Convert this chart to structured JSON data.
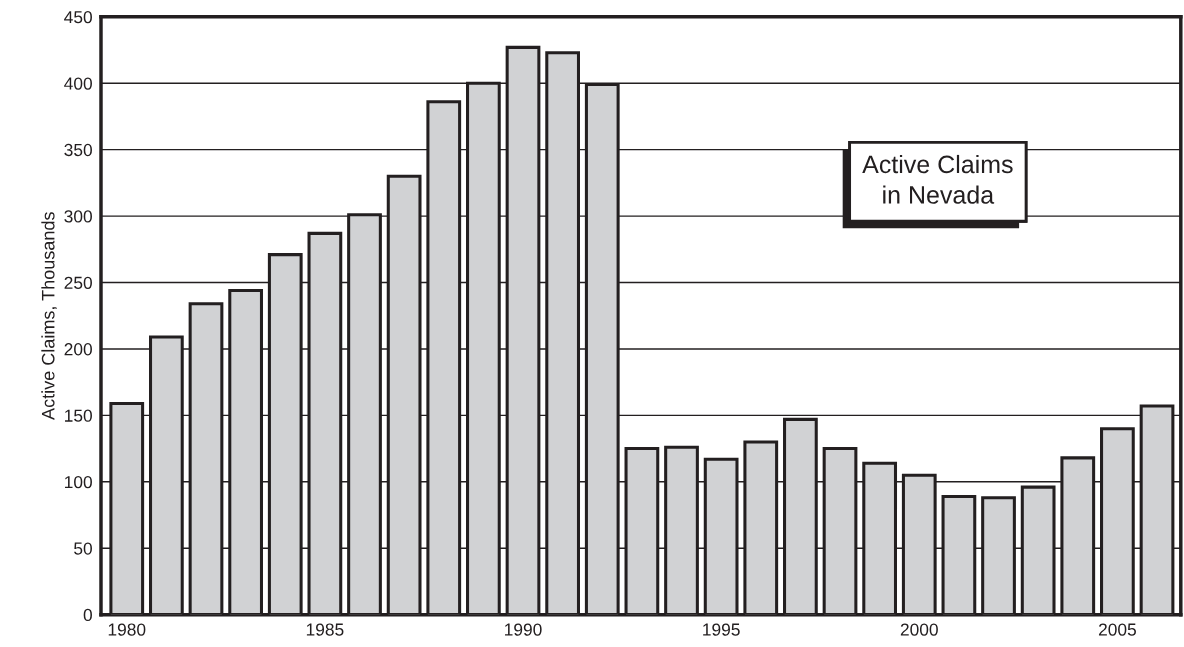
{
  "chart_data": {
    "type": "bar",
    "ylabel": "Active Claims, Thousands",
    "x": [
      1980,
      1981,
      1982,
      1983,
      1984,
      1985,
      1986,
      1987,
      1988,
      1989,
      1990,
      1991,
      1992,
      1993,
      1994,
      1995,
      1996,
      1997,
      1998,
      1999,
      2000,
      2001,
      2002,
      2003,
      2004,
      2005,
      2006
    ],
    "values": [
      159,
      209,
      234,
      244,
      271,
      287,
      301,
      330,
      386,
      400,
      427,
      423,
      399,
      125,
      126,
      117,
      130,
      147,
      125,
      114,
      105,
      89,
      88,
      96,
      118,
      140,
      157
    ],
    "color": "#d1d2d4",
    "xlim": [
      1979.35,
      2006.6
    ],
    "xticks": [
      1980,
      1985,
      1990,
      1995,
      2000,
      2005
    ],
    "ylim": [
      0,
      450
    ],
    "yticks": [
      0,
      50,
      100,
      150,
      200,
      250,
      300,
      350,
      400,
      450
    ],
    "grid": "y",
    "legend": false,
    "annotations": [
      "Active Claims\nin Nevada"
    ]
  }
}
